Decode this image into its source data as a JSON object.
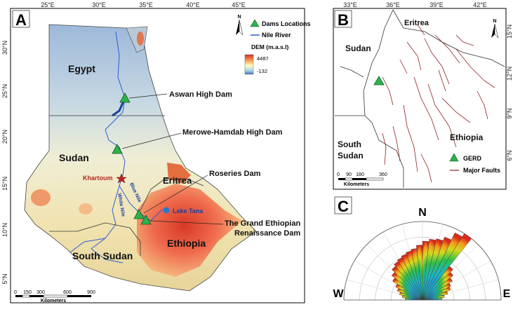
{
  "panel_a": {
    "letter": "A",
    "lon_ticks": [
      "25°E",
      "30°E",
      "35°E",
      "40°E",
      "45°E"
    ],
    "lat_ticks": [
      "30°N",
      "25°N",
      "20°N",
      "15°N",
      "10°N",
      "5°N"
    ],
    "countries": [
      "Egypt",
      "Sudan",
      "Eritrea",
      "South Sudan",
      "Ethiopia"
    ],
    "dams": [
      "Aswan High Dam",
      "Merowe-Hamdab High Dam",
      "Roseries Dam"
    ],
    "gerd_line1": "The Grand Ethiopian",
    "gerd_line2": "Renaissance Dam",
    "khartoum": "Khartoum",
    "lake_tana": "Lake Tana",
    "blue_nile": "Blue Nile",
    "white_nile": "White Nile",
    "legend": {
      "dams": "Dams Locations",
      "river": "Nile River",
      "dem_title": "DEM (m.a.s.l)",
      "dem_max": "4487",
      "dem_min": "-132"
    },
    "scalebar": {
      "ticks": [
        "0",
        "150",
        "300",
        "600",
        "900"
      ],
      "unit": "Kilometers"
    },
    "north": "N"
  },
  "panel_b": {
    "letter": "B",
    "lon_ticks": [
      "33°E",
      "36°E",
      "39°E",
      "42°E"
    ],
    "lat_ticks": [
      "15°N",
      "12°N",
      "9°N",
      "6°N"
    ],
    "countries": [
      "Eritrea",
      "Sudan",
      "South",
      "Sudan",
      "Ethiopia"
    ],
    "legend": {
      "gerd": "GERD",
      "faults": "Major Faults"
    },
    "scalebar": {
      "ticks": [
        "0",
        "90",
        "180",
        "360"
      ],
      "unit": "Kilometers"
    },
    "north": "N"
  },
  "panel_c": {
    "letter": "C",
    "north": "N",
    "west": "W",
    "east": "E",
    "petals": [
      0.22,
      0.26,
      0.3,
      0.34,
      0.38,
      0.45,
      0.5,
      0.55,
      0.58,
      0.6,
      0.62,
      0.64,
      0.66,
      0.7,
      0.75,
      0.78,
      0.8,
      0.85,
      0.95,
      1.0,
      0.55,
      0.5,
      0.45,
      0.4,
      0.38,
      0.33,
      0.28,
      0.25
    ]
  },
  "colors": {
    "river": "#2a5fd1",
    "dam": "#2bb34a",
    "fault": "#8b2323",
    "khartoum": "#b3261e"
  }
}
